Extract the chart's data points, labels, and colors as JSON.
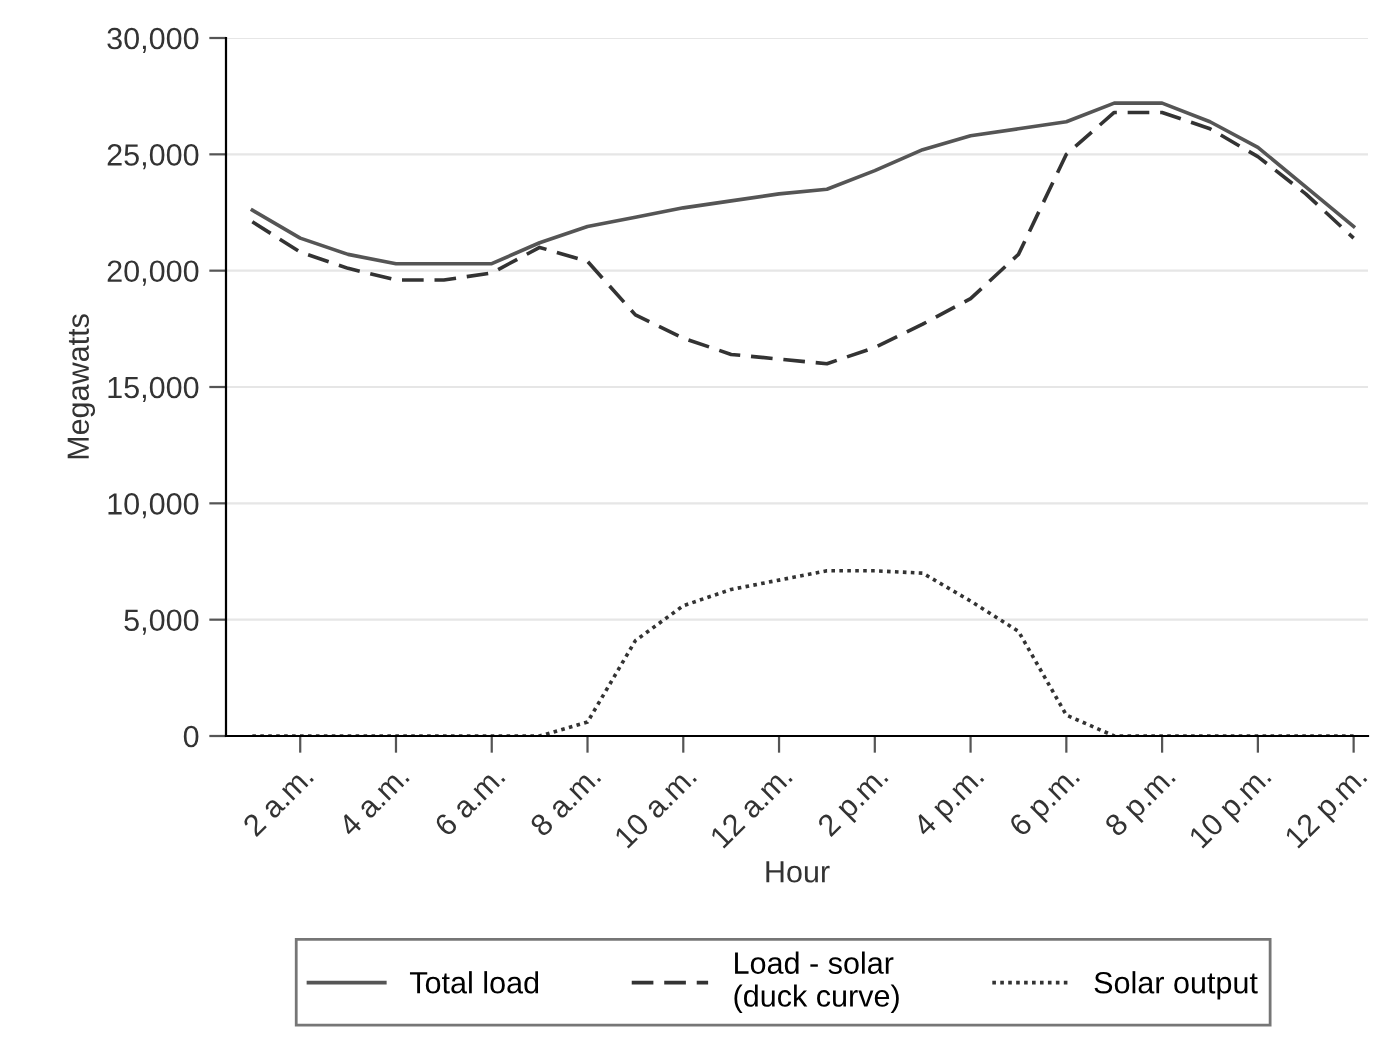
{
  "chart_data": {
    "type": "line",
    "xlabel": "Hour",
    "ylabel": "Megawatts",
    "categories": [
      null,
      "2 a.m.",
      null,
      "4 a.m.",
      null,
      "6 a.m.",
      null,
      "8 a.m.",
      null,
      "10 a.m.",
      null,
      "12 a.m.",
      null,
      "2 p.m.",
      null,
      "4 p.m.",
      null,
      "6 p.m.",
      null,
      "8 p.m.",
      null,
      "10 p.m.",
      null,
      "12 p.m."
    ],
    "series": [
      {
        "name": "Total load",
        "color": "#555555",
        "line_style": "solid",
        "values": [
          22600,
          21400,
          20700,
          20300,
          20300,
          20300,
          21200,
          21900,
          22300,
          22700,
          23000,
          23300,
          23500,
          24300,
          25200,
          25800,
          26100,
          26400,
          27200,
          27200,
          26400,
          25300,
          23600,
          21900
        ]
      },
      {
        "name": "Load - solar\n(duck curve)",
        "color": "#333333",
        "line_style": "dashed",
        "values": [
          22100,
          20800,
          20100,
          19600,
          19600,
          19900,
          21000,
          20400,
          18100,
          17100,
          16400,
          16200,
          16000,
          16700,
          17700,
          18800,
          20700,
          25000,
          26800,
          26800,
          26100,
          24900,
          23300,
          21400
        ]
      },
      {
        "name": "Solar output",
        "color": "#333333",
        "line_style": "dotted",
        "values": [
          0,
          0,
          0,
          0,
          0,
          0,
          0,
          600,
          4100,
          5600,
          6300,
          6700,
          7100,
          7100,
          7000,
          5800,
          4500,
          900,
          0,
          0,
          0,
          0,
          0,
          0
        ]
      }
    ],
    "ylim": [
      0,
      30000
    ],
    "yticks": [
      {
        "value": 0,
        "label": "0"
      },
      {
        "value": 5000,
        "label": "5,000"
      },
      {
        "value": 10000,
        "label": "10,000"
      },
      {
        "value": 15000,
        "label": "15,000"
      },
      {
        "value": 20000,
        "label": "20,000"
      },
      {
        "value": 25000,
        "label": "25,000"
      },
      {
        "value": 30000,
        "label": "30,000"
      }
    ],
    "grid": "y",
    "legend": "bottom",
    "marker": "none"
  }
}
